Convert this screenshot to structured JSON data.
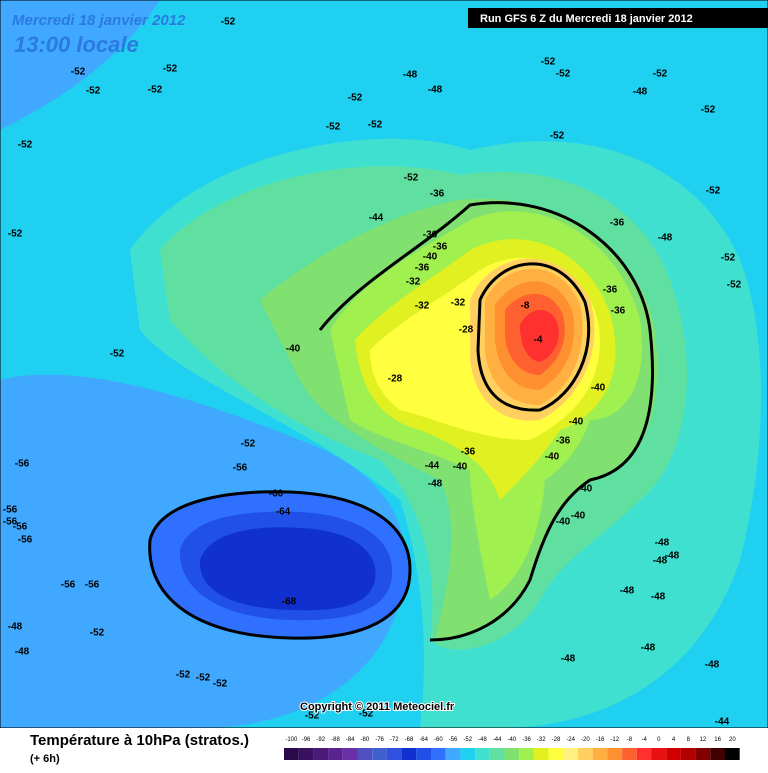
{
  "header": {
    "date": "Mercredi 18 janvier 2012",
    "time": "13:00 locale",
    "run": "Run GFS 6 Z du Mercredi 18 janvier 2012",
    "copyright": "Copyright © 2011 Meteociel.fr"
  },
  "footer": {
    "title": "Température à 10hPa (stratos.)",
    "lead": "(+ 6h)"
  },
  "colorbar": {
    "labels": [
      -100,
      -96,
      -92,
      -88,
      -84,
      -80,
      -76,
      -72,
      -68,
      -64,
      -60,
      -56,
      -52,
      -48,
      -44,
      -40,
      -36,
      -32,
      -28,
      -24,
      -20,
      -16,
      -12,
      -8,
      -4,
      0,
      4,
      8,
      12,
      16,
      20
    ],
    "colors": [
      "#2a0a4a",
      "#3a1060",
      "#4a1a78",
      "#5a2490",
      "#6a30a8",
      "#5050c0",
      "#4060d0",
      "#3050e0",
      "#1030d0",
      "#2050e8",
      "#3070ff",
      "#40a8ff",
      "#20d0f0",
      "#40e0d0",
      "#60e0a0",
      "#80e070",
      "#a0f050",
      "#e0f020",
      "#ffff40",
      "#fff080",
      "#ffd060",
      "#ffb040",
      "#ff9030",
      "#ff6030",
      "#ff3030",
      "#e81010",
      "#d00000",
      "#b00000",
      "#800000",
      "#400000",
      "#000000"
    ]
  },
  "contour_labels": [
    -52,
    -52,
    -52,
    -52,
    -52,
    -52,
    -52,
    -52,
    -52,
    -52,
    -48,
    -48,
    -52,
    -52,
    -52,
    -48,
    -52,
    -52,
    -52,
    -52,
    -48,
    -52,
    -52,
    -36,
    -44,
    -36,
    -36,
    -40,
    -36,
    -32,
    -32,
    -32,
    -36,
    -36,
    -36,
    -8,
    -4,
    -28,
    -28,
    -40,
    -52,
    -52,
    -56,
    -56,
    -56,
    -56,
    -56,
    -56,
    -56,
    -56,
    -60,
    -64,
    -68,
    -44,
    -48,
    -36,
    -40,
    -40,
    -40,
    -40,
    -40,
    -36,
    -40,
    -48,
    -48,
    -48,
    -48,
    -48,
    -48,
    -48,
    -52,
    -52,
    -52,
    -52,
    -48,
    -48,
    -48,
    -44,
    -52,
    -52,
    -40
  ]
}
